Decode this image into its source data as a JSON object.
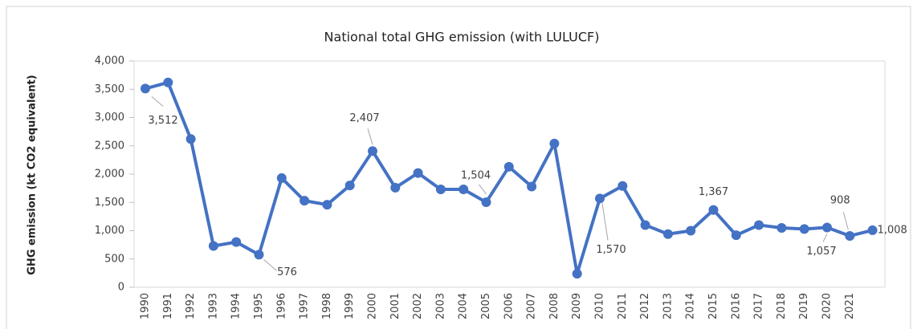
{
  "chart_data": {
    "type": "line",
    "title": "National total GHG emission (with LULUCF)",
    "y_label": "GHG emission (kt CO2 equivalent)",
    "categories": [
      "1990",
      "1991",
      "1992",
      "1993",
      "1994",
      "1995",
      "1996",
      "1997",
      "1998",
      "1999",
      "2000",
      "2001",
      "2002",
      "2003",
      "2004",
      "2005",
      "2006",
      "2007",
      "2008",
      "2009",
      "2010",
      "2011",
      "2012",
      "2013",
      "2014",
      "2015",
      "2016",
      "2017",
      "2018",
      "2019",
      "2020",
      "2021",
      null
    ],
    "series": [
      {
        "name": "National total GHG emission",
        "color": "#4472c4",
        "values": [
          3512,
          3620,
          2620,
          730,
          800,
          576,
          1930,
          1530,
          1460,
          1800,
          2407,
          1760,
          2020,
          1730,
          1730,
          1504,
          2130,
          1780,
          2540,
          240,
          1570,
          1790,
          1100,
          940,
          1000,
          1367,
          920,
          1100,
          1050,
          1030,
          1057,
          908,
          1008
        ],
        "value_labels": [
          "3,512",
          null,
          null,
          null,
          null,
          "576",
          null,
          null,
          null,
          null,
          "2,407",
          null,
          null,
          null,
          null,
          "1,504",
          null,
          null,
          null,
          null,
          "1,570",
          null,
          null,
          null,
          null,
          "1,367",
          null,
          null,
          null,
          null,
          "1,057",
          "908",
          "1,008"
        ]
      }
    ],
    "ylim": [
      0,
      4000
    ],
    "yticks": [
      0,
      500,
      {
        "value": 1000,
        "label": "1,000"
      },
      {
        "value": 1500,
        "label": "1,500"
      },
      {
        "value": 2000,
        "label": "2,000"
      },
      {
        "value": 2500,
        "label": "2,500"
      },
      {
        "value": 3000,
        "label": "3,000"
      },
      {
        "value": 3500,
        "label": "3,500"
      },
      {
        "value": 4000,
        "label": "4,000"
      }
    ],
    "grid": false
  }
}
